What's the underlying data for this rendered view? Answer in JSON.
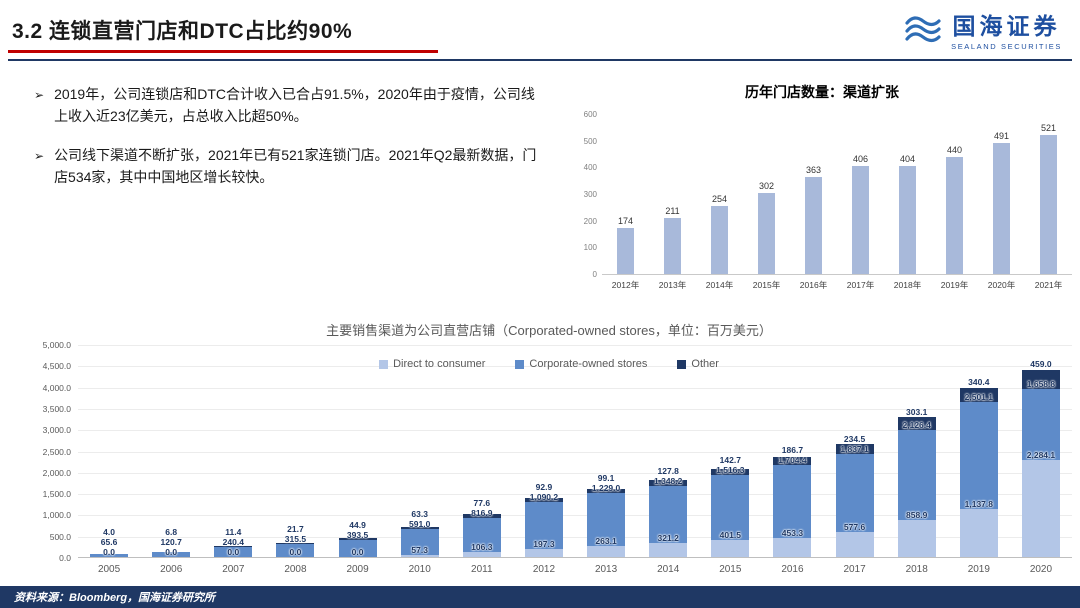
{
  "header": {
    "title": "3.2 连锁直营门店和DTC占比约90%",
    "logo": {
      "name": "国海证券",
      "sub": "SEALAND SECURITIES"
    }
  },
  "bullet_marker": "➢",
  "bullets": [
    "2019年，公司连锁店和DTC合计收入已合占91.5%，2020年由于疫情，公司线上收入近23亿美元，占总收入比超50%。",
    "公司线下渠道不断扩张，2021年已有521家连锁门店。2021年Q2最新数据，门店534家，其中中国地区增长较快。"
  ],
  "footer": {
    "source": "资料来源：Bloomberg，国海证券研究所"
  },
  "colors": {
    "accent_red": "#c00000",
    "navy": "#1f3864",
    "logo_blue": "#1e4fa0"
  },
  "chart_data": [
    {
      "type": "bar",
      "title": "历年门店数量：渠道扩张",
      "categories": [
        "2012年",
        "2013年",
        "2014年",
        "2015年",
        "2016年",
        "2017年",
        "2018年",
        "2019年",
        "2020年",
        "2021年"
      ],
      "values": [
        174,
        211,
        254,
        302,
        363,
        406,
        404,
        440,
        491,
        521
      ],
      "ylim": [
        0,
        600
      ],
      "ytick_step": 100,
      "bar_color": "#a8b9da",
      "grid": false,
      "legend": "none"
    },
    {
      "type": "bar",
      "subtype": "stacked",
      "title": "主要销售渠道为公司直营店铺（Corporated-owned stores，单位：百万美元）",
      "categories": [
        "2005",
        "2006",
        "2007",
        "2008",
        "2009",
        "2010",
        "2011",
        "2012",
        "2013",
        "2014",
        "2015",
        "2016",
        "2017",
        "2018",
        "2019",
        "2020"
      ],
      "series": [
        {
          "name": "Direct to consumer",
          "color": "#b3c6e7",
          "values": [
            0.0,
            0.0,
            0.0,
            0.0,
            0.0,
            57.3,
            106.3,
            197.3,
            263.1,
            321.2,
            401.5,
            453.3,
            577.6,
            858.9,
            1137.8,
            2284.1
          ]
        },
        {
          "name": "Corporate-owned stores",
          "color": "#5e8bc9",
          "values": [
            65.6,
            120.7,
            240.4,
            315.5,
            393.5,
            591.0,
            816.9,
            1090.2,
            1229.0,
            1348.2,
            1516.3,
            1704.4,
            1837.1,
            2126.4,
            2501.1,
            1658.8
          ]
        },
        {
          "name": "Other",
          "color": "#1f3864",
          "values": [
            4.0,
            6.8,
            11.4,
            21.7,
            44.9,
            63.3,
            77.6,
            92.9,
            99.1,
            127.8,
            142.7,
            186.7,
            234.5,
            303.1,
            340.4,
            459.0
          ]
        }
      ],
      "ylim": [
        0,
        5000
      ],
      "ytick_step": 500,
      "grid": true,
      "legend": "top"
    }
  ]
}
